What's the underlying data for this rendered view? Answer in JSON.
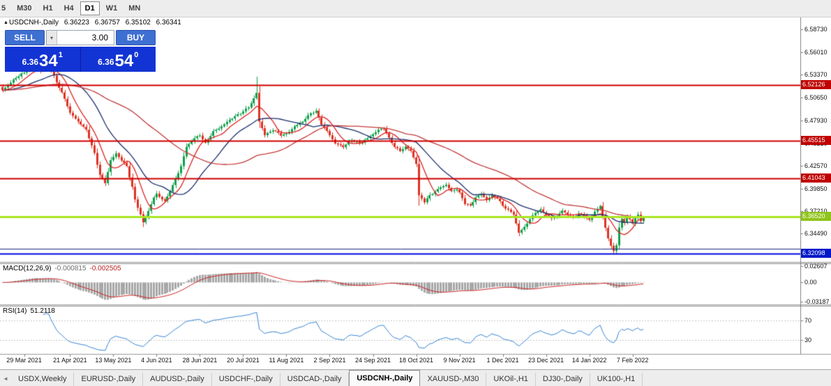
{
  "icons": {
    "header_marker": "▲",
    "volume_dropdown": "▾",
    "tabs_scroll_left": "◄"
  },
  "toolbar": {
    "periods": [
      "5",
      "M30",
      "H1",
      "H4",
      "D1",
      "W1",
      "MN"
    ],
    "active_period": "D1"
  },
  "chart_header": {
    "symbol": "USDCNH-,Daily",
    "open": "6.36223",
    "high": "6.36757",
    "low": "6.35102",
    "close": "6.36341"
  },
  "trade_panel": {
    "sell_label": "SELL",
    "buy_label": "BUY",
    "volume": "3.00",
    "sell_price": {
      "base": "6.36",
      "pips": "34",
      "pt": "1"
    },
    "buy_price": {
      "base": "6.36",
      "pips": "54",
      "pt": "0"
    }
  },
  "price_axis": {
    "labels": [
      "6.58730",
      "6.56010",
      "6.53370",
      "6.50650",
      "6.47930",
      "6.45210",
      "6.42570",
      "6.39850",
      "6.37210",
      "6.34490"
    ]
  },
  "macd_panel": {
    "name": "MACD(12,26,9)",
    "main_value": "-0.000815",
    "signal_value": "-0.002505",
    "axis_labels": [
      {
        "text": "0.02607",
        "value": 0.02607
      },
      {
        "text": "0.00",
        "value": 0
      },
      {
        "text": "-0.03187",
        "value": -0.03187
      }
    ]
  },
  "rsi_panel": {
    "name": "RSI(14)",
    "value": "51.2118",
    "axis_labels": [
      {
        "text": "70",
        "value": 70
      },
      {
        "text": "30",
        "value": 30
      }
    ]
  },
  "time_axis": {
    "labels": [
      {
        "text": "29 Mar 2021",
        "i": 8
      },
      {
        "text": "21 Apr 2021",
        "i": 25
      },
      {
        "text": "13 May 2021",
        "i": 41
      },
      {
        "text": "4 Jun 2021",
        "i": 57
      },
      {
        "text": "28 Jun 2021",
        "i": 73
      },
      {
        "text": "20 Jul 2021",
        "i": 89
      },
      {
        "text": "11 Aug 2021",
        "i": 105
      },
      {
        "text": "2 Sep 2021",
        "i": 121
      },
      {
        "text": "24 Sep 2021",
        "i": 137
      },
      {
        "text": "18 Oct 2021",
        "i": 153
      },
      {
        "text": "9 Nov 2021",
        "i": 169
      },
      {
        "text": "1 Dec 2021",
        "i": 185
      },
      {
        "text": "23 Dec 2021",
        "i": 201
      },
      {
        "text": "14 Jan 2022",
        "i": 217
      },
      {
        "text": "7 Feb 2022",
        "i": 233
      }
    ]
  },
  "tabs": {
    "items": [
      "USDX,Weekly",
      "EURUSD-,Daily",
      "AUDUSD-,Daily",
      "USDCHF-,Daily",
      "USDCAD-,Daily",
      "USDCNH-,Daily",
      "XAUUSD-,M30",
      "UKOil-,H1",
      "DJ30-,Daily",
      "UK100-,H1"
    ],
    "active": "USDCNH-,Daily"
  },
  "chart_data": {
    "type": "candlestick",
    "symbol": "USDCNH",
    "timeframe": "Daily",
    "candle_count": 238,
    "ylim": [
      6.3114,
      6.6022
    ],
    "up_color": "#0fa04a",
    "down_color": "#dd3222",
    "close_anchors": [
      [
        0,
        6.515
      ],
      [
        3,
        6.524
      ],
      [
        5,
        6.53
      ],
      [
        8,
        6.536
      ],
      [
        11,
        6.544
      ],
      [
        14,
        6.538
      ],
      [
        17,
        6.545
      ],
      [
        20,
        6.525
      ],
      [
        23,
        6.505
      ],
      [
        25,
        6.488
      ],
      [
        28,
        6.478
      ],
      [
        31,
        6.468
      ],
      [
        34,
        6.44
      ],
      [
        36,
        6.415
      ],
      [
        38,
        6.405
      ],
      [
        40,
        6.432
      ],
      [
        42,
        6.44
      ],
      [
        44,
        6.432
      ],
      [
        46,
        6.425
      ],
      [
        48,
        6.4
      ],
      [
        49,
        6.385
      ],
      [
        51,
        6.368
      ],
      [
        52,
        6.358
      ],
      [
        54,
        6.372
      ],
      [
        56,
        6.388
      ],
      [
        57,
        6.392
      ],
      [
        60,
        6.383
      ],
      [
        63,
        6.402
      ],
      [
        66,
        6.425
      ],
      [
        68,
        6.448
      ],
      [
        71,
        6.458
      ],
      [
        73,
        6.462
      ],
      [
        75,
        6.452
      ],
      [
        78,
        6.466
      ],
      [
        81,
        6.472
      ],
      [
        84,
        6.48
      ],
      [
        87,
        6.486
      ],
      [
        89,
        6.49
      ],
      [
        91,
        6.495
      ],
      [
        93,
        6.505
      ],
      [
        94,
        6.512
      ],
      [
        95,
        6.478
      ],
      [
        97,
        6.462
      ],
      [
        100,
        6.468
      ],
      [
        103,
        6.462
      ],
      [
        105,
        6.463
      ],
      [
        108,
        6.472
      ],
      [
        111,
        6.478
      ],
      [
        114,
        6.488
      ],
      [
        116,
        6.49
      ],
      [
        118,
        6.475
      ],
      [
        121,
        6.462
      ],
      [
        123,
        6.452
      ],
      [
        126,
        6.448
      ],
      [
        129,
        6.456
      ],
      [
        132,
        6.452
      ],
      [
        135,
        6.458
      ],
      [
        137,
        6.463
      ],
      [
        139,
        6.468
      ],
      [
        141,
        6.47
      ],
      [
        143,
        6.458
      ],
      [
        145,
        6.448
      ],
      [
        147,
        6.443
      ],
      [
        149,
        6.448
      ],
      [
        151,
        6.443
      ],
      [
        153,
        6.428
      ],
      [
        154,
        6.39
      ],
      [
        156,
        6.383
      ],
      [
        158,
        6.39
      ],
      [
        160,
        6.395
      ],
      [
        162,
        6.4
      ],
      [
        164,
        6.403
      ],
      [
        166,
        6.395
      ],
      [
        168,
        6.398
      ],
      [
        169,
        6.393
      ],
      [
        171,
        6.381
      ],
      [
        173,
        6.378
      ],
      [
        175,
        6.388
      ],
      [
        177,
        6.392
      ],
      [
        179,
        6.385
      ],
      [
        181,
        6.39
      ],
      [
        183,
        6.387
      ],
      [
        185,
        6.378
      ],
      [
        187,
        6.373
      ],
      [
        189,
        6.368
      ],
      [
        191,
        6.346
      ],
      [
        193,
        6.353
      ],
      [
        195,
        6.362
      ],
      [
        197,
        6.37
      ],
      [
        199,
        6.373
      ],
      [
        201,
        6.368
      ],
      [
        203,
        6.363
      ],
      [
        205,
        6.366
      ],
      [
        207,
        6.372
      ],
      [
        209,
        6.368
      ],
      [
        211,
        6.364
      ],
      [
        213,
        6.369
      ],
      [
        215,
        6.366
      ],
      [
        217,
        6.361
      ],
      [
        219,
        6.371
      ],
      [
        221,
        6.378
      ],
      [
        223,
        6.352
      ],
      [
        224,
        6.34
      ],
      [
        225,
        6.33
      ],
      [
        226,
        6.324
      ],
      [
        227,
        6.332
      ],
      [
        228,
        6.352
      ],
      [
        229,
        6.362
      ],
      [
        230,
        6.358
      ],
      [
        231,
        6.365
      ],
      [
        232,
        6.362
      ],
      [
        233,
        6.357
      ],
      [
        234,
        6.363
      ],
      [
        235,
        6.368
      ],
      [
        236,
        6.36
      ],
      [
        237,
        6.36341
      ]
    ],
    "wick_overrides": {
      "52": {
        "low": 6.3529
      },
      "94": {
        "high": 6.531
      },
      "154": {
        "low": 6.378
      },
      "226": {
        "low": 6.3208
      }
    },
    "ma_lines": [
      {
        "period": 8,
        "color": "#dd2222"
      },
      {
        "period": 21,
        "color": "#1c2f6e"
      },
      {
        "period": 55,
        "color": "#c43a3a"
      }
    ],
    "levels": [
      {
        "price": 6.52126,
        "color": "#d00000",
        "width": 2,
        "badge": "6.52126",
        "badge_bg": "#c00000"
      },
      {
        "price": 6.45515,
        "color": "#d00000",
        "width": 2,
        "badge": "6.45515",
        "badge_bg": "#c00000"
      },
      {
        "price": 6.41043,
        "color": "#d00000",
        "width": 2,
        "badge": "6.41043",
        "badge_bg": "#c00000"
      },
      {
        "price": 6.3652,
        "color": "#a8e621",
        "width": 3,
        "badge": "6.36520",
        "badge_bg": "#8fc41a"
      },
      {
        "price": 6.327,
        "color": "#202a80",
        "width": 1
      },
      {
        "price": 6.32098,
        "color": "#0008e0",
        "width": 2,
        "badge": "6.32098",
        "badge_bg": "#0018c8"
      }
    ],
    "macd": {
      "fast": 12,
      "slow": 26,
      "signal": 9,
      "hist_color": "#a8a8a8",
      "signal_color": "#cc2222",
      "range": [
        -0.036,
        0.03
      ]
    },
    "rsi": {
      "period": 14,
      "color": "#3584d6",
      "range": [
        0,
        100
      ],
      "guides": [
        70,
        30
      ]
    }
  }
}
